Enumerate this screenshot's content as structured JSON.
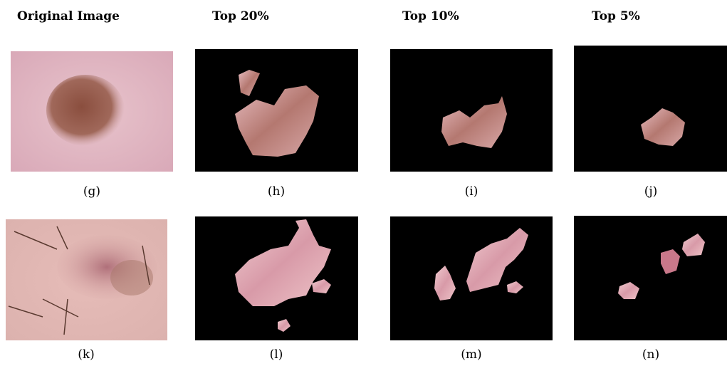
{
  "columns": [
    "Original Image",
    "Top 20%",
    "Top 10%",
    "Top 5%"
  ],
  "captions": [
    [
      "(g)",
      "(h)",
      "(i)",
      "(j)"
    ],
    [
      "(k)",
      "(l)",
      "(m)",
      "(n)"
    ]
  ]
}
